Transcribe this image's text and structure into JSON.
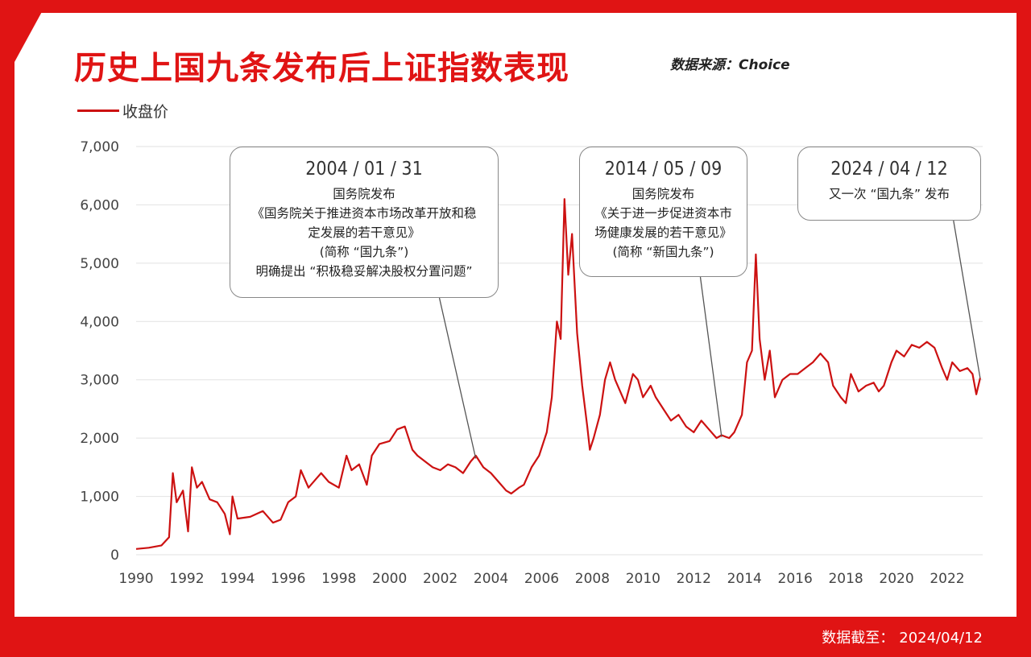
{
  "title": "历史上国九条发布后上证指数表现",
  "source": "数据来源：Choice",
  "legend_label": "收盘价",
  "footer": {
    "label": "数据截至：",
    "date": "2024/04/12"
  },
  "colors": {
    "brand_red": "#e01414",
    "series": "#cc1111"
  },
  "annotations": [
    {
      "date": "2004 / 01 / 31",
      "lines": [
        "国务院发布",
        "《国务院关于推进资本市场改革开放和稳",
        "定发展的若干意见》",
        "(简称 “国九条”)",
        "明确提出 “积极稳妥解决股权分置问题”"
      ],
      "point": {
        "year": 2003.4,
        "value": 1650
      }
    },
    {
      "date": "2014 / 05 / 09",
      "lines": [
        "国务院发布",
        "《关于进一步促进资本市",
        "场健康发展的若干意见》",
        "(简称 “新国九条”)"
      ],
      "point": {
        "year": 2013.1,
        "value": 2020
      }
    },
    {
      "date": "2024 / 04 / 12",
      "lines": [
        "又一次 “国九条” 发布"
      ],
      "point": {
        "year": 2023.3,
        "value": 3030
      }
    }
  ],
  "chart_data": {
    "type": "line",
    "title": "历史上国九条发布后上证指数表现",
    "xlabel": "",
    "ylabel": "",
    "xlim": [
      1990,
      2023.4
    ],
    "ylim": [
      0,
      7000
    ],
    "x_ticks": [
      "1990",
      "1992",
      "1994",
      "1996",
      "1998",
      "2000",
      "2002",
      "2004",
      "2006",
      "2008",
      "2010",
      "2012",
      "2014",
      "2016",
      "2018",
      "2020",
      "2022"
    ],
    "y_ticks": [
      "0",
      "1,000",
      "2,000",
      "3,000",
      "4,000",
      "5,000",
      "6,000",
      "7,000"
    ],
    "series": [
      {
        "name": "收盘价",
        "points": [
          [
            1990.0,
            100
          ],
          [
            1990.5,
            120
          ],
          [
            1991.0,
            160
          ],
          [
            1991.3,
            300
          ],
          [
            1991.45,
            1400
          ],
          [
            1991.6,
            900
          ],
          [
            1991.85,
            1100
          ],
          [
            1992.05,
            400
          ],
          [
            1992.2,
            1500
          ],
          [
            1992.4,
            1150
          ],
          [
            1992.6,
            1250
          ],
          [
            1992.9,
            950
          ],
          [
            1993.2,
            900
          ],
          [
            1993.5,
            700
          ],
          [
            1993.7,
            350
          ],
          [
            1993.8,
            1000
          ],
          [
            1994.0,
            620
          ],
          [
            1994.5,
            650
          ],
          [
            1995.0,
            750
          ],
          [
            1995.4,
            550
          ],
          [
            1995.7,
            600
          ],
          [
            1996.0,
            900
          ],
          [
            1996.3,
            1000
          ],
          [
            1996.5,
            1450
          ],
          [
            1996.8,
            1150
          ],
          [
            1997.1,
            1300
          ],
          [
            1997.3,
            1400
          ],
          [
            1997.6,
            1250
          ],
          [
            1998.0,
            1150
          ],
          [
            1998.3,
            1700
          ],
          [
            1998.5,
            1450
          ],
          [
            1998.8,
            1550
          ],
          [
            1999.1,
            1200
          ],
          [
            1999.3,
            1700
          ],
          [
            1999.6,
            1900
          ],
          [
            2000.0,
            1950
          ],
          [
            2000.3,
            2150
          ],
          [
            2000.6,
            2200
          ],
          [
            2000.9,
            1800
          ],
          [
            2001.1,
            1700
          ],
          [
            2001.4,
            1600
          ],
          [
            2001.7,
            1500
          ],
          [
            2002.0,
            1450
          ],
          [
            2002.3,
            1550
          ],
          [
            2002.6,
            1500
          ],
          [
            2002.9,
            1400
          ],
          [
            2003.2,
            1600
          ],
          [
            2003.4,
            1700
          ],
          [
            2003.7,
            1500
          ],
          [
            2004.0,
            1400
          ],
          [
            2004.3,
            1250
          ],
          [
            2004.6,
            1100
          ],
          [
            2004.8,
            1050
          ],
          [
            2005.1,
            1150
          ],
          [
            2005.3,
            1200
          ],
          [
            2005.6,
            1500
          ],
          [
            2005.9,
            1700
          ],
          [
            2006.2,
            2100
          ],
          [
            2006.4,
            2700
          ],
          [
            2006.6,
            4000
          ],
          [
            2006.75,
            3700
          ],
          [
            2006.9,
            6100
          ],
          [
            2007.05,
            4800
          ],
          [
            2007.2,
            5500
          ],
          [
            2007.4,
            3800
          ],
          [
            2007.6,
            2900
          ],
          [
            2007.8,
            2200
          ],
          [
            2007.9,
            1800
          ],
          [
            2008.05,
            2000
          ],
          [
            2008.3,
            2400
          ],
          [
            2008.5,
            3000
          ],
          [
            2008.7,
            3300
          ],
          [
            2008.9,
            3000
          ],
          [
            2009.1,
            2800
          ],
          [
            2009.3,
            2600
          ],
          [
            2009.6,
            3100
          ],
          [
            2009.8,
            3000
          ],
          [
            2010.0,
            2700
          ],
          [
            2010.3,
            2900
          ],
          [
            2010.5,
            2700
          ],
          [
            2010.8,
            2500
          ],
          [
            2011.1,
            2300
          ],
          [
            2011.4,
            2400
          ],
          [
            2011.7,
            2200
          ],
          [
            2012.0,
            2100
          ],
          [
            2012.3,
            2300
          ],
          [
            2012.6,
            2150
          ],
          [
            2012.9,
            2000
          ],
          [
            2013.1,
            2050
          ],
          [
            2013.4,
            2000
          ],
          [
            2013.6,
            2100
          ],
          [
            2013.9,
            2400
          ],
          [
            2014.1,
            3300
          ],
          [
            2014.3,
            3500
          ],
          [
            2014.45,
            5150
          ],
          [
            2014.6,
            3700
          ],
          [
            2014.8,
            3000
          ],
          [
            2015.0,
            3500
          ],
          [
            2015.2,
            2700
          ],
          [
            2015.5,
            3000
          ],
          [
            2015.8,
            3100
          ],
          [
            2016.1,
            3100
          ],
          [
            2016.4,
            3200
          ],
          [
            2016.7,
            3300
          ],
          [
            2017.0,
            3450
          ],
          [
            2017.3,
            3300
          ],
          [
            2017.5,
            2900
          ],
          [
            2017.8,
            2700
          ],
          [
            2018.0,
            2600
          ],
          [
            2018.2,
            3100
          ],
          [
            2018.5,
            2800
          ],
          [
            2018.8,
            2900
          ],
          [
            2019.1,
            2950
          ],
          [
            2019.3,
            2800
          ],
          [
            2019.5,
            2900
          ],
          [
            2019.8,
            3300
          ],
          [
            2020.0,
            3500
          ],
          [
            2020.3,
            3400
          ],
          [
            2020.6,
            3600
          ],
          [
            2020.9,
            3550
          ],
          [
            2021.2,
            3650
          ],
          [
            2021.5,
            3550
          ],
          [
            2021.8,
            3200
          ],
          [
            2022.0,
            3000
          ],
          [
            2022.2,
            3300
          ],
          [
            2022.5,
            3150
          ],
          [
            2022.8,
            3200
          ],
          [
            2023.0,
            3100
          ],
          [
            2023.15,
            2750
          ],
          [
            2023.3,
            3030
          ]
        ]
      }
    ]
  }
}
